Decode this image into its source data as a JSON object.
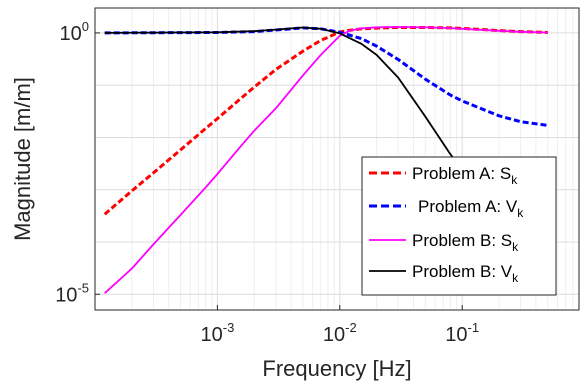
{
  "chart_data": {
    "type": "line",
    "xlabel": "Frequency [Hz]",
    "ylabel": "Magnitude [m/m]",
    "xscale": "log",
    "yscale": "log",
    "xlim": [
      0.0001,
      0.9
    ],
    "ylim": [
      5e-06,
      3.0
    ],
    "grid": true,
    "legend_position": "bottom-right",
    "x_ticks": [
      {
        "base": "10",
        "exp": "-3",
        "value": 0.001
      },
      {
        "base": "10",
        "exp": "-2",
        "value": 0.01
      },
      {
        "base": "10",
        "exp": "-1",
        "value": 0.1
      }
    ],
    "y_ticks": [
      {
        "base": "10",
        "exp": "0",
        "value": 1
      },
      {
        "base": "10",
        "exp": "-5",
        "value": 1e-05
      }
    ],
    "series": [
      {
        "name": "Problem A: S",
        "sub": "k",
        "color": "#ff0000",
        "style": "dashed",
        "x": [
          0.00012,
          0.0002,
          0.0003,
          0.0005,
          0.0008,
          0.001,
          0.0015,
          0.002,
          0.003,
          0.005,
          0.007,
          0.01,
          0.012,
          0.015,
          0.02,
          0.03,
          0.05,
          0.08,
          0.1,
          0.15,
          0.2,
          0.3,
          0.5
        ],
        "y": [
          0.00034,
          0.00095,
          0.0021,
          0.0058,
          0.0148,
          0.023,
          0.052,
          0.092,
          0.2,
          0.45,
          0.72,
          1.04,
          1.12,
          1.2,
          1.24,
          1.27,
          1.27,
          1.25,
          1.22,
          1.16,
          1.11,
          1.06,
          1.02
        ]
      },
      {
        "name": "Problem A: V",
        "sub": "k",
        "color": "#0000ff",
        "style": "dashed",
        "x": [
          0.00012,
          0.001,
          0.002,
          0.003,
          0.005,
          0.007,
          0.01,
          0.015,
          0.02,
          0.03,
          0.05,
          0.08,
          0.1,
          0.15,
          0.2,
          0.3,
          0.5
        ],
        "y": [
          1.0,
          1.02,
          1.06,
          1.14,
          1.25,
          1.2,
          1.03,
          0.78,
          0.56,
          0.31,
          0.13,
          0.065,
          0.05,
          0.034,
          0.026,
          0.02,
          0.017
        ]
      },
      {
        "name": "Problem B: S",
        "sub": "k",
        "color": "#ff00ff",
        "style": "solid",
        "x": [
          0.00012,
          0.0002,
          0.0003,
          0.0005,
          0.0008,
          0.001,
          0.0015,
          0.002,
          0.003,
          0.005,
          0.007,
          0.01,
          0.012,
          0.015,
          0.02,
          0.03,
          0.05,
          0.08,
          0.1,
          0.15,
          0.2,
          0.3,
          0.5
        ],
        "y": [
          1.05e-05,
          3.1e-05,
          9e-05,
          0.00033,
          0.0011,
          0.002,
          0.0062,
          0.0135,
          0.036,
          0.155,
          0.38,
          0.88,
          1.1,
          1.22,
          1.28,
          1.3,
          1.28,
          1.24,
          1.2,
          1.14,
          1.1,
          1.05,
          1.02
        ]
      },
      {
        "name": "Problem B: V",
        "sub": "k",
        "color": "#000000",
        "style": "solid",
        "x": [
          0.00012,
          0.001,
          0.002,
          0.003,
          0.005,
          0.007,
          0.01,
          0.015,
          0.02,
          0.03,
          0.05,
          0.08,
          0.1,
          0.15,
          0.2,
          0.3,
          0.5
        ],
        "y": [
          1.0,
          1.03,
          1.08,
          1.16,
          1.27,
          1.2,
          0.98,
          0.62,
          0.38,
          0.14,
          0.025,
          0.0048,
          0.0024,
          0.00075,
          0.00035,
          0.00015,
          6e-05
        ]
      }
    ]
  }
}
